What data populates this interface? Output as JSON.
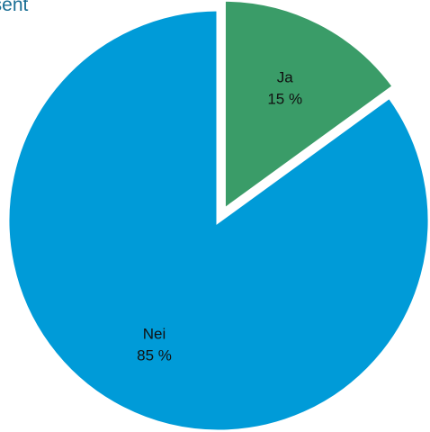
{
  "chart_data": {
    "type": "pie",
    "title": "osent",
    "categories": [
      "Ja",
      "Nei"
    ],
    "values": [
      15,
      85
    ],
    "value_labels": [
      "15 %",
      "85 %"
    ],
    "colors": [
      "#3a9c68",
      "#009bd8"
    ],
    "slice_border_color": "#ffffff",
    "exploded_slice": "Ja",
    "start": "12 o'clock",
    "direction": "clockwise",
    "legend": "none"
  }
}
